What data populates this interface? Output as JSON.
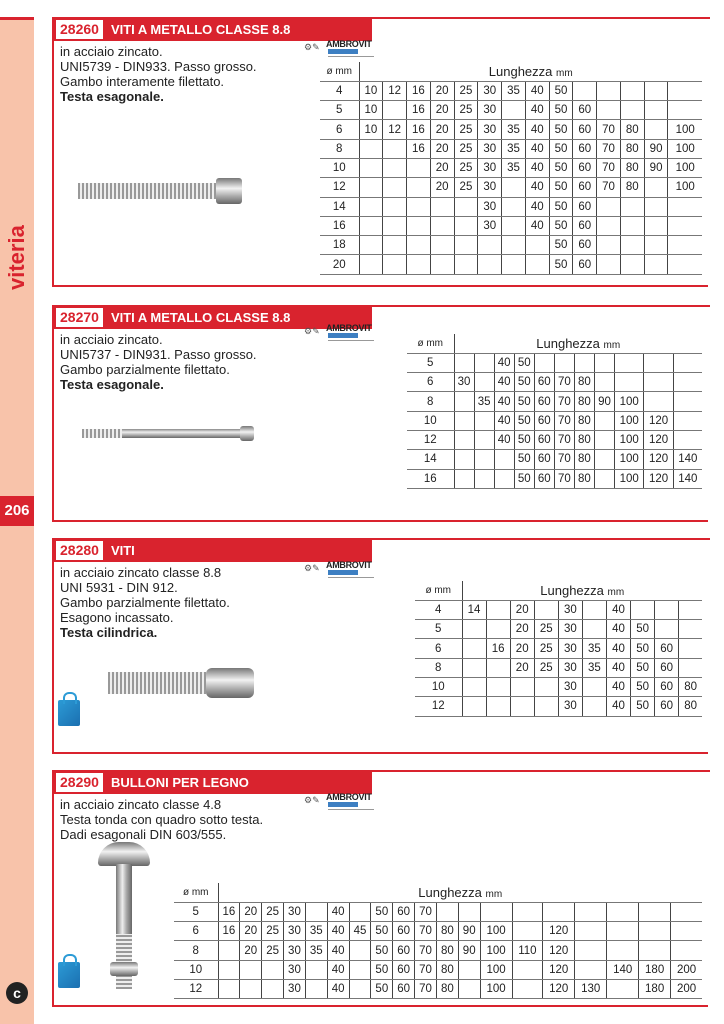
{
  "sidebar": {
    "category": "viteria",
    "page_number": "206",
    "brand_icon": "c-logo-icon"
  },
  "brand": "AMBROVIT",
  "diam_label": "ø mm",
  "length_label": "Lunghezza",
  "length_unit": "mm",
  "sections": [
    {
      "code": "28260",
      "title": "VITI A METALLO CLASSE 8.8",
      "desc": [
        "in acciaio zincato.",
        "UNI5739 - DIN933. Passo grosso.",
        "Gambo interamente filettato."
      ],
      "desc_bold": "Testa esagonale.",
      "rows": [
        [
          "4",
          "10",
          "12",
          "16",
          "20",
          "25",
          "30",
          "35",
          "40",
          "50",
          "",
          "",
          "",
          "",
          ""
        ],
        [
          "5",
          "10",
          "",
          "16",
          "20",
          "25",
          "30",
          "",
          "40",
          "50",
          "60",
          "",
          "",
          "",
          ""
        ],
        [
          "6",
          "10",
          "12",
          "16",
          "20",
          "25",
          "30",
          "35",
          "40",
          "50",
          "60",
          "70",
          "80",
          "",
          "100"
        ],
        [
          "8",
          "",
          "",
          "16",
          "20",
          "25",
          "30",
          "35",
          "40",
          "50",
          "60",
          "70",
          "80",
          "90",
          "100"
        ],
        [
          "10",
          "",
          "",
          "",
          "20",
          "25",
          "30",
          "35",
          "40",
          "50",
          "60",
          "70",
          "80",
          "90",
          "100"
        ],
        [
          "12",
          "",
          "",
          "",
          "20",
          "25",
          "30",
          "",
          "40",
          "50",
          "60",
          "70",
          "80",
          "",
          "100"
        ],
        [
          "14",
          "",
          "",
          "",
          "",
          "",
          "30",
          "",
          "40",
          "50",
          "60",
          "",
          "",
          "",
          ""
        ],
        [
          "16",
          "",
          "",
          "",
          "",
          "",
          "30",
          "",
          "40",
          "50",
          "60",
          "",
          "",
          "",
          ""
        ],
        [
          "18",
          "",
          "",
          "",
          "",
          "",
          "",
          "",
          "",
          "50",
          "60",
          "",
          "",
          "",
          ""
        ],
        [
          "20",
          "",
          "",
          "",
          "",
          "",
          "",
          "",
          "",
          "50",
          "60",
          "",
          "",
          "",
          ""
        ]
      ]
    },
    {
      "code": "28270",
      "title": "VITI A METALLO CLASSE 8.8",
      "desc": [
        "in acciaio zincato.",
        "UNI5737 - DIN931. Passo grosso.",
        "Gambo parzialmente filettato."
      ],
      "desc_bold": "Testa esagonale.",
      "rows": [
        [
          "5",
          "",
          "",
          "40",
          "50",
          "",
          "",
          "",
          "",
          "",
          "",
          ""
        ],
        [
          "6",
          "30",
          "",
          "40",
          "50",
          "60",
          "70",
          "80",
          "",
          "",
          "",
          ""
        ],
        [
          "8",
          "",
          "35",
          "40",
          "50",
          "60",
          "70",
          "80",
          "90",
          "100",
          "",
          ""
        ],
        [
          "10",
          "",
          "",
          "40",
          "50",
          "60",
          "70",
          "80",
          "",
          "100",
          "120",
          ""
        ],
        [
          "12",
          "",
          "",
          "40",
          "50",
          "60",
          "70",
          "80",
          "",
          "100",
          "120",
          ""
        ],
        [
          "14",
          "",
          "",
          "",
          "50",
          "60",
          "70",
          "80",
          "",
          "100",
          "120",
          "140"
        ],
        [
          "16",
          "",
          "",
          "",
          "50",
          "60",
          "70",
          "80",
          "",
          "100",
          "120",
          "140"
        ]
      ]
    },
    {
      "code": "28280",
      "title": "VITI",
      "desc": [
        "in acciaio zincato classe 8.8",
        "UNI 5931 - DIN 912.",
        "Gambo parzialmente filettato.",
        "Esagono incassato."
      ],
      "desc_bold": "Testa cilindrica.",
      "rows": [
        [
          "4",
          "14",
          "",
          "20",
          "",
          "30",
          "",
          "40",
          "",
          "",
          ""
        ],
        [
          "5",
          "",
          "",
          "20",
          "25",
          "30",
          "",
          "40",
          "50",
          "",
          ""
        ],
        [
          "6",
          "",
          "16",
          "20",
          "25",
          "30",
          "35",
          "40",
          "50",
          "60",
          ""
        ],
        [
          "8",
          "",
          "",
          "20",
          "25",
          "30",
          "35",
          "40",
          "50",
          "60",
          ""
        ],
        [
          "10",
          "",
          "",
          "",
          "",
          "30",
          "",
          "40",
          "50",
          "60",
          "80"
        ],
        [
          "12",
          "",
          "",
          "",
          "",
          "30",
          "",
          "40",
          "50",
          "60",
          "80"
        ]
      ]
    },
    {
      "code": "28290",
      "title": "BULLONI PER LEGNO",
      "desc": [
        "in acciaio zincato classe 4.8",
        "Testa tonda con quadro sotto testa.",
        "Dadi esagonali  DIN 603/555."
      ],
      "desc_bold": "",
      "rows": [
        [
          "5",
          "16",
          "20",
          "25",
          "30",
          "",
          "40",
          "",
          "50",
          "60",
          "70",
          "",
          "",
          "",
          "",
          "",
          "",
          "",
          "",
          ""
        ],
        [
          "6",
          "16",
          "20",
          "25",
          "30",
          "35",
          "40",
          "45",
          "50",
          "60",
          "70",
          "80",
          "90",
          "100",
          "",
          "120",
          "",
          "",
          "",
          ""
        ],
        [
          "8",
          "",
          "20",
          "25",
          "30",
          "35",
          "40",
          "",
          "50",
          "60",
          "70",
          "80",
          "90",
          "100",
          "110",
          "120",
          "",
          "",
          "",
          ""
        ],
        [
          "10",
          "",
          "",
          "",
          "30",
          "",
          "40",
          "",
          "50",
          "60",
          "70",
          "80",
          "",
          "100",
          "",
          "120",
          "",
          "140",
          "180",
          "200"
        ],
        [
          "12",
          "",
          "",
          "",
          "30",
          "",
          "40",
          "",
          "50",
          "60",
          "70",
          "80",
          "",
          "100",
          "",
          "120",
          "130",
          "",
          "180",
          "200"
        ]
      ]
    }
  ]
}
